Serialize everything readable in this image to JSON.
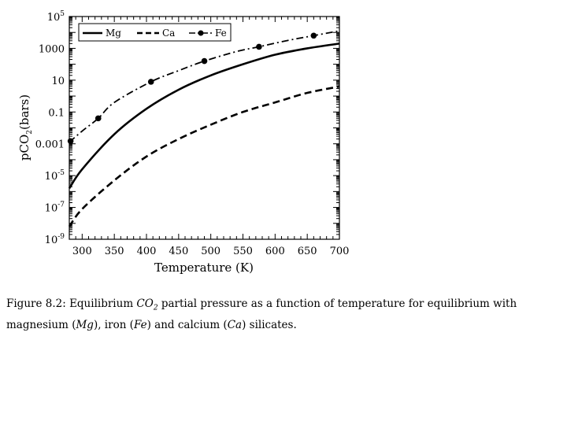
{
  "chart_data": {
    "type": "line",
    "xlabel": "Temperature (K)",
    "ylabel": "pCO",
    "ylabel_subscript": "2",
    "ylabel_units": "(bars)",
    "xlim": [
      280,
      700
    ],
    "ylim_log10": [
      -9,
      5
    ],
    "yscale": "log",
    "x_ticks": [
      300,
      350,
      400,
      450,
      500,
      550,
      600,
      650,
      700
    ],
    "y_tick_labels": [
      {
        "exp": -9,
        "base": "10",
        "sup": "-9"
      },
      {
        "exp": -7,
        "base": "10",
        "sup": "-7"
      },
      {
        "exp": -5,
        "base": "10",
        "sup": "-5"
      },
      {
        "exp": -3,
        "text": "0.001"
      },
      {
        "exp": -1,
        "text": "0.1"
      },
      {
        "exp": 1,
        "text": "10"
      },
      {
        "exp": 3,
        "text": "1000"
      },
      {
        "exp": 5,
        "base": "10",
        "sup": "5"
      }
    ],
    "grid": false,
    "legend_position": "top",
    "series": [
      {
        "name": "Mg",
        "style": "solid",
        "x": [
          280,
          300,
          350,
          400,
          450,
          500,
          550,
          600,
          650,
          700
        ],
        "y_log10": [
          -5.8,
          -4.6,
          -2.4,
          -0.8,
          0.4,
          1.3,
          2.0,
          2.6,
          3.0,
          3.3
        ]
      },
      {
        "name": "Ca",
        "style": "dashed",
        "x": [
          280,
          300,
          350,
          400,
          450,
          500,
          550,
          600,
          650,
          700
        ],
        "y_log10": [
          -8.2,
          -7.1,
          -5.3,
          -3.8,
          -2.7,
          -1.8,
          -1.0,
          -0.4,
          0.2,
          0.6
        ]
      },
      {
        "name": "Fe",
        "style": "dashdot",
        "markers": true,
        "x": [
          280,
          300,
          325,
          350,
          407,
          450,
          490,
          540,
          575,
          620,
          660,
          700
        ],
        "y_log10": [
          -2.9,
          -2.2,
          -1.4,
          -0.4,
          0.9,
          1.6,
          2.2,
          2.8,
          3.1,
          3.5,
          3.8,
          4.1
        ],
        "marker_x": [
          282,
          325,
          407,
          490,
          575,
          660
        ]
      }
    ]
  },
  "caption": {
    "prefix": "Figure 8.2:  Equilibrium ",
    "co2": "CO",
    "co2_sub": "2",
    "mid1": " partial pressure as a function of temperature for equilibrium with magnesium (",
    "mg": "Mg",
    "mid2": "), iron (",
    "fe": "Fe",
    "mid3": ") and calcium (",
    "ca": "Ca",
    "end": ") silicates."
  }
}
